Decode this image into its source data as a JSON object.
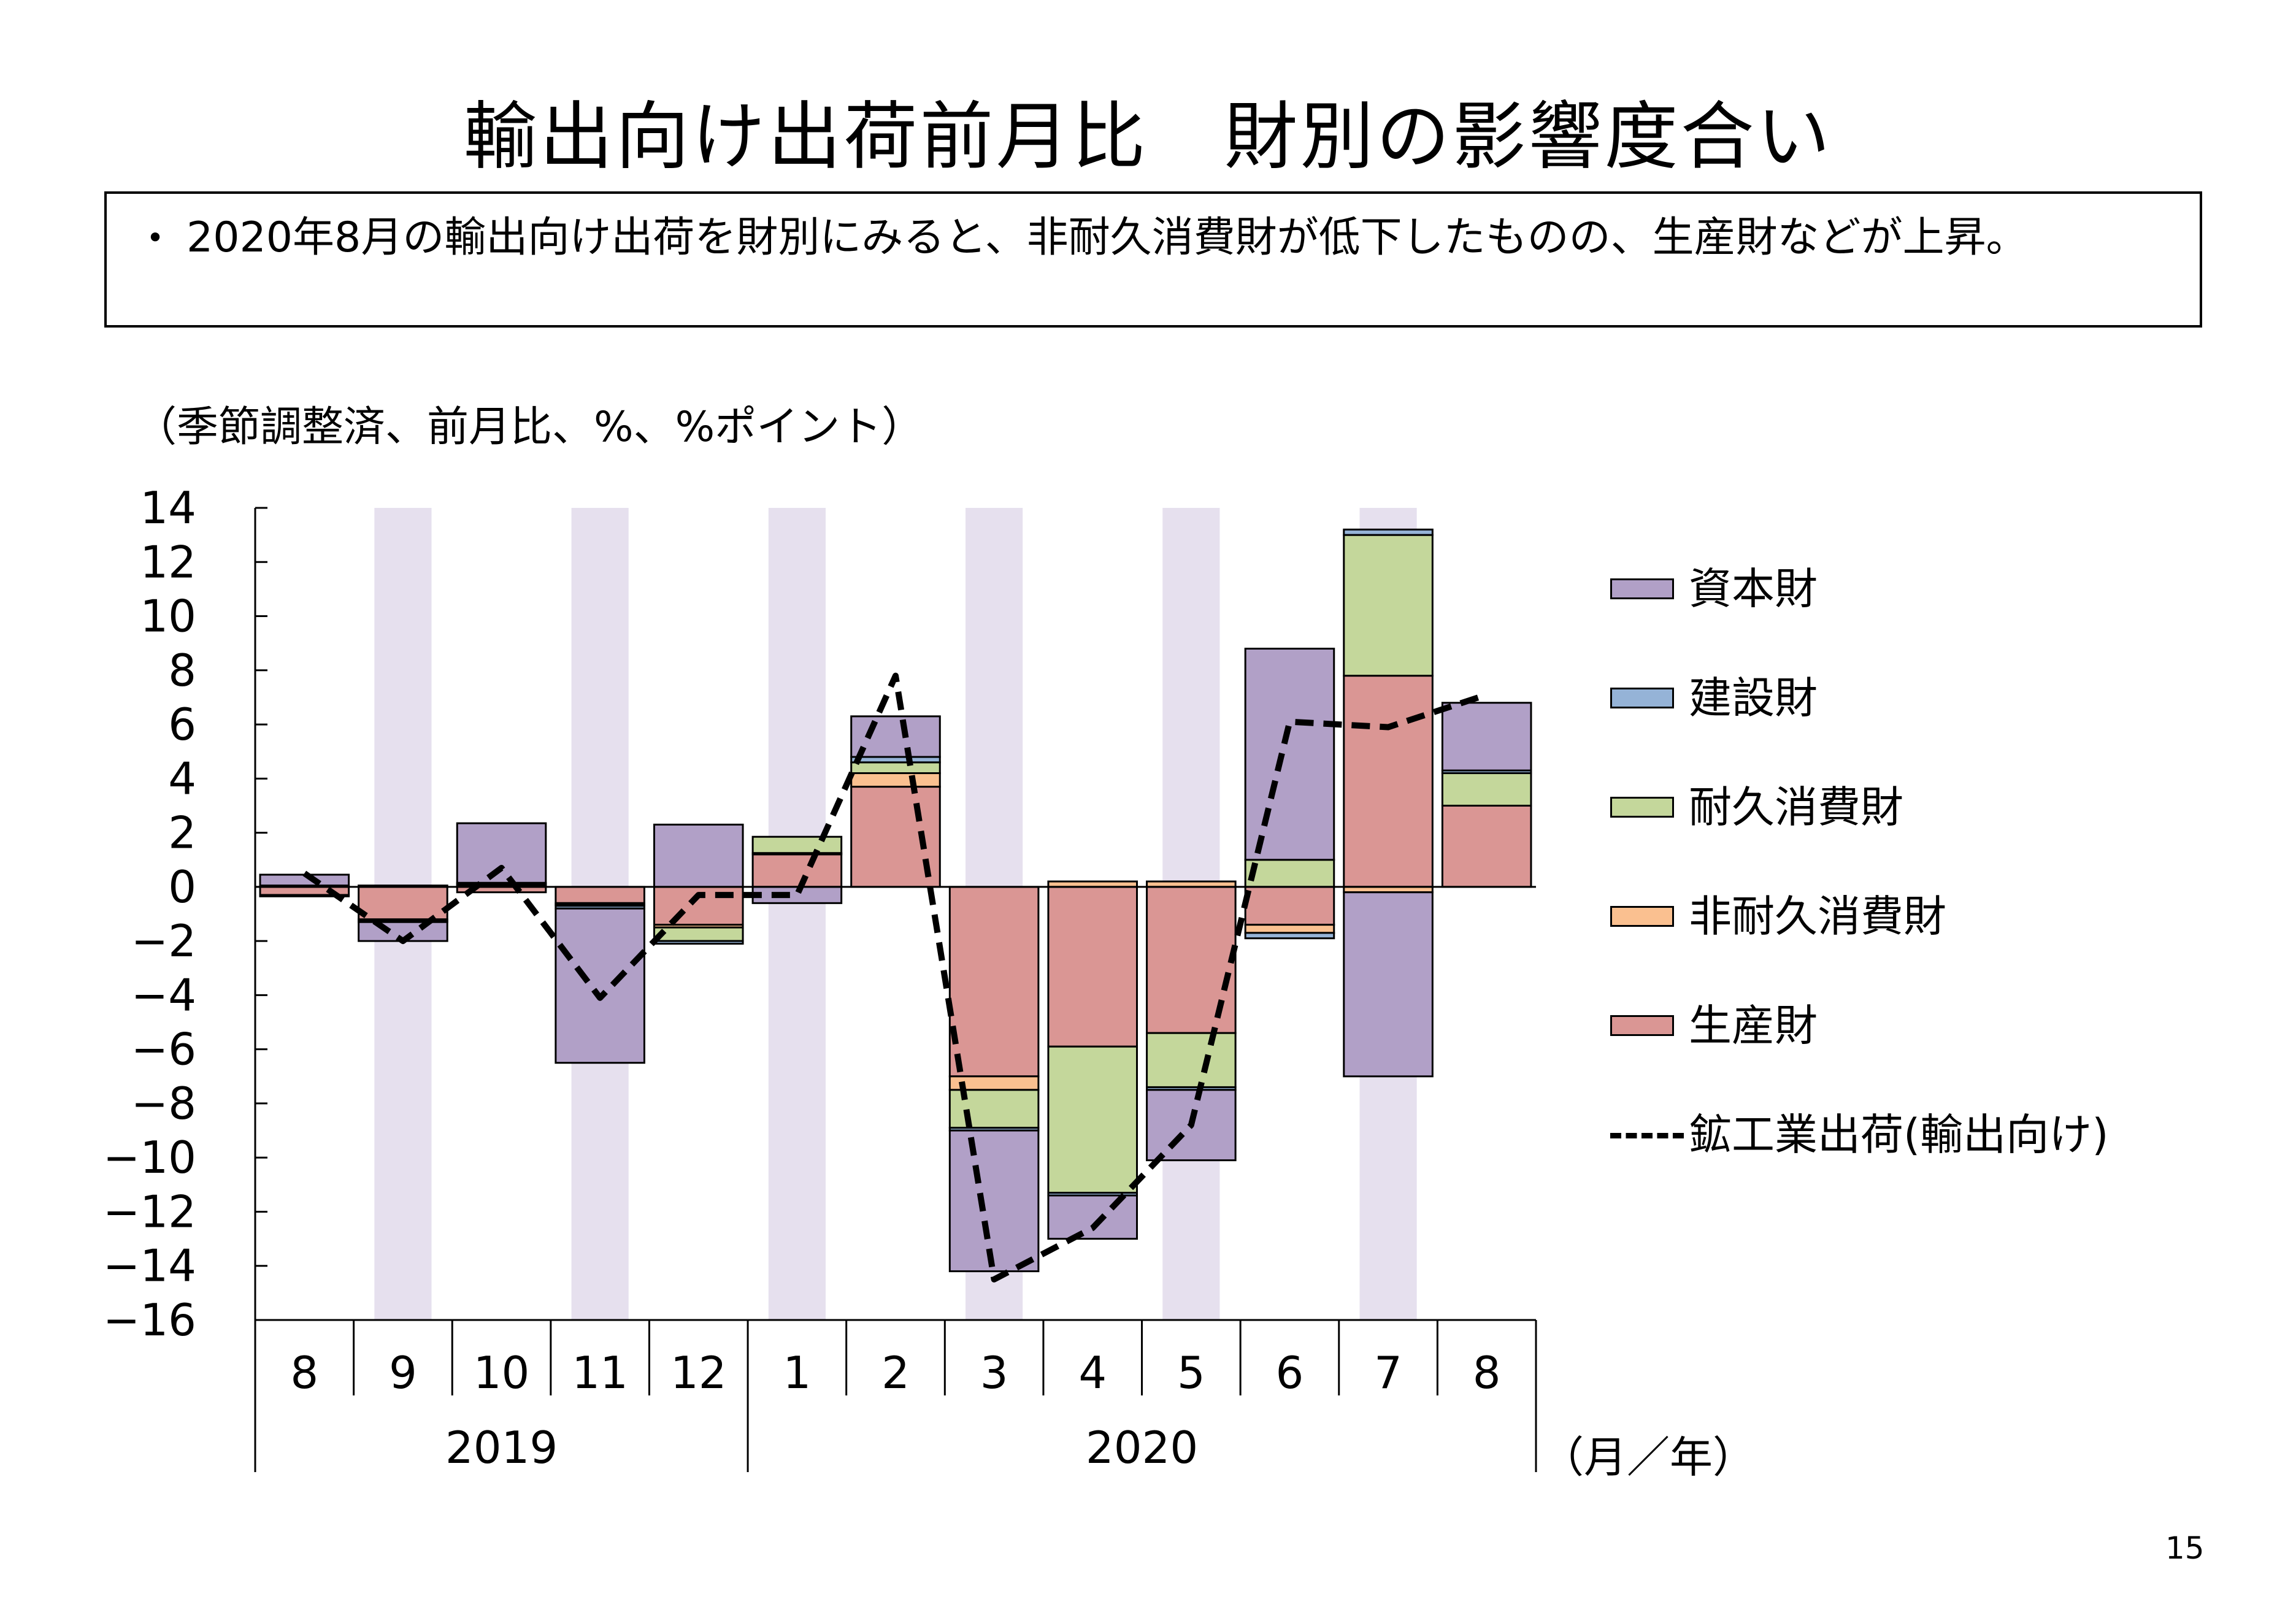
{
  "title": "輸出向け出荷前月比　財別の影響度合い",
  "summary": {
    "bullet": "・",
    "text": "2020年8月の輸出向け出荷を財別にみると、非耐久消費財が低下したものの、生産財などが上昇。"
  },
  "page_number": "15",
  "chart_data": {
    "type": "bar",
    "stacked": true,
    "units_label": "（季節調整済、前月比、%、%ポイント）",
    "categories": [
      "8",
      "9",
      "10",
      "11",
      "12",
      "1",
      "2",
      "3",
      "4",
      "5",
      "6",
      "7",
      "8"
    ],
    "year_groups": [
      {
        "label": "2019",
        "start": 0,
        "end": 4
      },
      {
        "label": "2020",
        "start": 5,
        "end": 12
      }
    ],
    "xaxis_unit": "（月／年）",
    "ylim": [
      -16,
      14
    ],
    "yticks": [
      14,
      12,
      10,
      8,
      6,
      4,
      2,
      0,
      -2,
      -4,
      -6,
      -8,
      -10,
      -12,
      -14,
      -16
    ],
    "shaded_categories": [
      1,
      3,
      5,
      7,
      9,
      11
    ],
    "shade_color": "#e6e0ee",
    "series": [
      {
        "name": "生産財",
        "color": "#da9694",
        "values": [
          -0.3,
          -1.2,
          -0.2,
          -0.6,
          -1.4,
          1.2,
          3.7,
          -7.0,
          -5.9,
          -5.4,
          -1.4,
          7.8,
          3.0
        ]
      },
      {
        "name": "非耐久消費財",
        "color": "#fac090",
        "values": [
          -0.05,
          -0.05,
          0.05,
          -0.05,
          -0.1,
          0.05,
          0.5,
          -0.5,
          0.2,
          0.2,
          -0.3,
          -0.2,
          0.0
        ]
      },
      {
        "name": "耐久消費財",
        "color": "#c4d79b",
        "values": [
          0.05,
          0.05,
          0.05,
          -0.05,
          -0.5,
          0.6,
          0.4,
          -1.4,
          -5.4,
          -2.0,
          1.0,
          5.2,
          1.2
        ]
      },
      {
        "name": "建設財",
        "color": "#95b3d7",
        "values": [
          0.0,
          -0.05,
          0.05,
          -0.1,
          -0.1,
          0.0,
          0.2,
          -0.1,
          -0.1,
          -0.1,
          -0.2,
          0.2,
          0.1
        ]
      },
      {
        "name": "資本財",
        "color": "#b1a0c7",
        "values": [
          0.4,
          -0.7,
          2.2,
          -5.7,
          2.3,
          -0.6,
          1.5,
          -5.2,
          -1.6,
          -2.6,
          7.8,
          -6.8,
          2.5
        ]
      }
    ],
    "line_series": {
      "name": "鉱工業出荷(輸出向け)",
      "style": "dashed",
      "color": "#000000",
      "values": [
        0.5,
        -2.0,
        0.7,
        -4.1,
        -0.3,
        -0.3,
        7.8,
        -14.5,
        -12.6,
        -8.8,
        6.1,
        5.9,
        7.1
      ]
    },
    "legend_order": [
      "資本財",
      "建設財",
      "耐久消費財",
      "非耐久消費財",
      "生産財"
    ],
    "legend_position": "right"
  }
}
